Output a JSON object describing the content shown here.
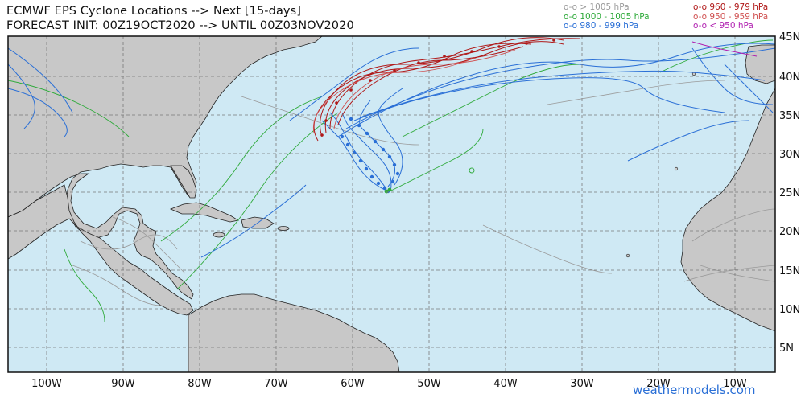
{
  "title_line1": "ECMWF EPS Cyclone Locations --> Next [15-days]",
  "title_line2": "FORECAST INIT: 00Z19OCT2020 --> UNTIL 00Z03NOV2020",
  "legend": [
    {
      "label": "o-o > 1005 hPa",
      "color": "#9a9a9a"
    },
    {
      "label": "o-o 1000 - 1005 hPa",
      "color": "#2eaa3a"
    },
    {
      "label": "o-o 980 - 999 hPa",
      "color": "#2a6fd6"
    },
    {
      "label": "o-o 960 - 979 hPa",
      "color": "#b01818"
    },
    {
      "label": "o-o 950 - 959 hPa",
      "color": "#d05050"
    },
    {
      "label": "o-o < 950 hPa",
      "color": "#b020b0"
    }
  ],
  "lon_ticks": [
    "100W",
    "90W",
    "80W",
    "70W",
    "60W",
    "50W",
    "40W",
    "30W",
    "20W",
    "10W"
  ],
  "lat_ticks": [
    "45N",
    "40N",
    "35N",
    "30N",
    "25N",
    "20N",
    "15N",
    "10N",
    "5N"
  ],
  "credit": "weathermodels.com",
  "colors": {
    "ocean": "#cfe9f4",
    "land": "#c8c8c8",
    "grid": "#7a7a7a"
  }
}
